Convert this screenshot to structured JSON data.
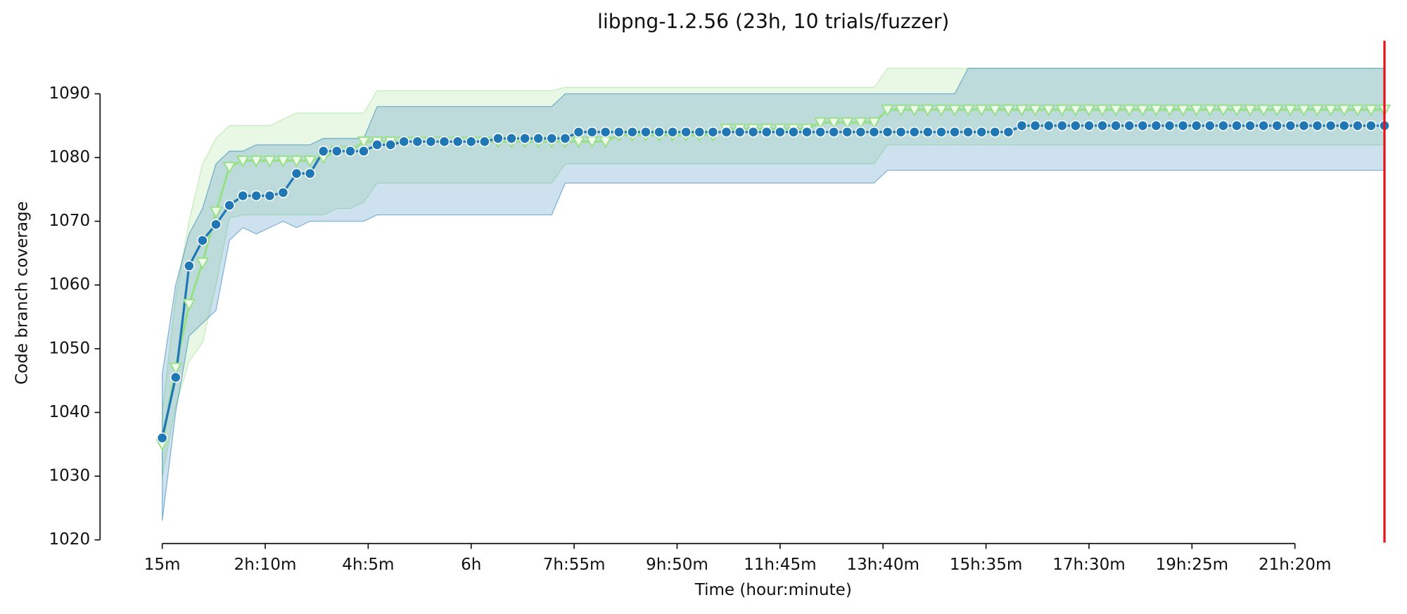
{
  "chart_data": {
    "type": "line",
    "title": "libpng-1.2.56 (23h, 10 trials/fuzzer)",
    "xlabel": "Time (hour:minute)",
    "ylabel": "Code branch coverage",
    "x": [
      15,
      30,
      45,
      60,
      75,
      90,
      105,
      120,
      135,
      150,
      165,
      180,
      195,
      210,
      225,
      240,
      255,
      270,
      285,
      300,
      315,
      330,
      345,
      360,
      375,
      390,
      405,
      420,
      435,
      450,
      465,
      480,
      495,
      510,
      525,
      540,
      555,
      570,
      585,
      600,
      615,
      630,
      645,
      660,
      675,
      690,
      705,
      720,
      735,
      750,
      765,
      780,
      795,
      810,
      825,
      840,
      855,
      870,
      885,
      900,
      915,
      930,
      945,
      960,
      975,
      990,
      1005,
      1020,
      1035,
      1050,
      1065,
      1080,
      1095,
      1110,
      1125,
      1140,
      1155,
      1170,
      1185,
      1200,
      1215,
      1230,
      1245,
      1260,
      1275,
      1290,
      1305,
      1320,
      1335,
      1350,
      1365,
      1380
    ],
    "xlim": [
      15,
      1380
    ],
    "xticks": [
      {
        "value": 15,
        "label": "15m"
      },
      {
        "value": 130,
        "label": "2h:10m"
      },
      {
        "value": 245,
        "label": "4h:5m"
      },
      {
        "value": 360,
        "label": "6h"
      },
      {
        "value": 475,
        "label": "7h:55m"
      },
      {
        "value": 590,
        "label": "9h:50m"
      },
      {
        "value": 705,
        "label": "11h:45m"
      },
      {
        "value": 820,
        "label": "13h:40m"
      },
      {
        "value": 935,
        "label": "15h:35m"
      },
      {
        "value": 1050,
        "label": "17h:30m"
      },
      {
        "value": 1165,
        "label": "19h:25m"
      },
      {
        "value": 1280,
        "label": "21h:20m"
      }
    ],
    "ylim": [
      1020,
      1098
    ],
    "yticks": [
      1020,
      1030,
      1040,
      1050,
      1060,
      1070,
      1080,
      1090
    ],
    "vline": {
      "x": 1380,
      "color": "#e8101a"
    },
    "series": [
      {
        "color": "#98df8a",
        "marker": "triangle",
        "values": [
          1035,
          1047,
          1057,
          1063.5,
          1071.5,
          1078.5,
          1079.5,
          1079.5,
          1079.5,
          1079.5,
          1079.5,
          1079.5,
          1080,
          1081,
          1081,
          1082.5,
          1082.5,
          1082.5,
          1082.5,
          1082.5,
          1082.5,
          1082.5,
          1082.5,
          1082.5,
          1082.5,
          1082.5,
          1082.5,
          1082.5,
          1082.5,
          1082.5,
          1082.5,
          1082.5,
          1082.5,
          1082.5,
          1083.5,
          1083.5,
          1083.5,
          1083.5,
          1083.5,
          1083.5,
          1083.5,
          1083.5,
          1084.5,
          1084.5,
          1084.5,
          1084.5,
          1084.5,
          1084.5,
          1084.5,
          1085.5,
          1085.5,
          1085.5,
          1085.5,
          1085.5,
          1087.5,
          1087.5,
          1087.5,
          1087.5,
          1087.5,
          1087.5,
          1087.5,
          1087.5,
          1087.5,
          1087.5,
          1087.5,
          1087.5,
          1087.5,
          1087.5,
          1087.5,
          1087.5,
          1087.5,
          1087.5,
          1087.5,
          1087.5,
          1087.5,
          1087.5,
          1087.5,
          1087.5,
          1087.5,
          1087.5,
          1087.5,
          1087.5,
          1087.5,
          1087.5,
          1087.5,
          1087.5,
          1087.5,
          1087.5,
          1087.5,
          1087.5,
          1087.5,
          1087.5
        ],
        "lower": [
          1030,
          1041,
          1048,
          1051,
          1060,
          1070.5,
          1071,
          1071,
          1071,
          1071,
          1071,
          1071,
          1071,
          1072,
          1072,
          1073,
          1076,
          1076,
          1076,
          1076,
          1076,
          1076,
          1076,
          1076,
          1076,
          1076,
          1076,
          1076,
          1076,
          1076,
          1079,
          1079,
          1079,
          1079,
          1079,
          1079,
          1079,
          1079,
          1079,
          1079,
          1079,
          1079,
          1079,
          1079,
          1079,
          1079,
          1079,
          1079,
          1079,
          1079,
          1079,
          1079,
          1079,
          1079,
          1082,
          1082,
          1082,
          1082,
          1082,
          1082,
          1082,
          1082,
          1082,
          1082,
          1082,
          1082,
          1082,
          1082,
          1082,
          1082,
          1082,
          1082,
          1082,
          1082,
          1082,
          1082,
          1082,
          1082,
          1082,
          1082,
          1082,
          1082,
          1082,
          1082,
          1082,
          1082,
          1082,
          1082,
          1082,
          1082,
          1082,
          1082
        ],
        "upper": [
          1040,
          1058,
          1070,
          1079,
          1083,
          1085,
          1085,
          1085,
          1085,
          1086,
          1087,
          1087,
          1087,
          1087,
          1087,
          1087,
          1090.5,
          1090.5,
          1090.5,
          1090.5,
          1090.5,
          1090.5,
          1090.5,
          1090.5,
          1090.5,
          1090.5,
          1090.5,
          1090.5,
          1090.5,
          1090.5,
          1091,
          1091,
          1091,
          1091,
          1091,
          1091,
          1091,
          1091,
          1091,
          1091,
          1091,
          1091,
          1091,
          1091,
          1091,
          1091,
          1091,
          1091,
          1091,
          1091,
          1091,
          1091,
          1091,
          1091,
          1094,
          1094,
          1094,
          1094,
          1094,
          1094,
          1094,
          1094,
          1094,
          1094,
          1094,
          1094,
          1094,
          1094,
          1094,
          1094,
          1094,
          1094,
          1094,
          1094,
          1094,
          1094,
          1094,
          1094,
          1094,
          1094,
          1094,
          1094,
          1094,
          1094,
          1094,
          1094,
          1094,
          1094,
          1094,
          1094,
          1094,
          1094
        ]
      },
      {
        "color": "#1f77b4",
        "marker": "circle",
        "values": [
          1036,
          1045.5,
          1063,
          1067,
          1069.5,
          1072.5,
          1074,
          1074,
          1074,
          1074.5,
          1077.5,
          1077.5,
          1081,
          1081,
          1081,
          1081,
          1082,
          1082,
          1082.5,
          1082.5,
          1082.5,
          1082.5,
          1082.5,
          1082.5,
          1082.5,
          1083,
          1083,
          1083,
          1083,
          1083,
          1083,
          1084,
          1084,
          1084,
          1084,
          1084,
          1084,
          1084,
          1084,
          1084,
          1084,
          1084,
          1084,
          1084,
          1084,
          1084,
          1084,
          1084,
          1084,
          1084,
          1084,
          1084,
          1084,
          1084,
          1084,
          1084,
          1084,
          1084,
          1084,
          1084,
          1084,
          1084,
          1084,
          1084,
          1085,
          1085,
          1085,
          1085,
          1085,
          1085,
          1085,
          1085,
          1085,
          1085,
          1085,
          1085,
          1085,
          1085,
          1085,
          1085,
          1085,
          1085,
          1085,
          1085,
          1085,
          1085,
          1085,
          1085,
          1085,
          1085,
          1085,
          1085
        ],
        "lower": [
          1023,
          1040,
          1052,
          1054,
          1056,
          1067,
          1069,
          1068,
          1069,
          1070,
          1069,
          1070,
          1070,
          1070,
          1070,
          1070,
          1071,
          1071,
          1071,
          1071,
          1071,
          1071,
          1071,
          1071,
          1071,
          1071,
          1071,
          1071,
          1071,
          1071,
          1076,
          1076,
          1076,
          1076,
          1076,
          1076,
          1076,
          1076,
          1076,
          1076,
          1076,
          1076,
          1076,
          1076,
          1076,
          1076,
          1076,
          1076,
          1076,
          1076,
          1076,
          1076,
          1076,
          1076,
          1078,
          1078,
          1078,
          1078,
          1078,
          1078,
          1078,
          1078,
          1078,
          1078,
          1078,
          1078,
          1078,
          1078,
          1078,
          1078,
          1078,
          1078,
          1078,
          1078,
          1078,
          1078,
          1078,
          1078,
          1078,
          1078,
          1078,
          1078,
          1078,
          1078,
          1078,
          1078,
          1078,
          1078,
          1078,
          1078,
          1078,
          1078
        ],
        "upper": [
          1046,
          1060,
          1068,
          1072,
          1079,
          1081,
          1081,
          1082,
          1082,
          1082,
          1082,
          1082,
          1083,
          1083,
          1083,
          1083,
          1088,
          1088,
          1088,
          1088,
          1088,
          1088,
          1088,
          1088,
          1088,
          1088,
          1088,
          1088,
          1088,
          1088,
          1090,
          1090,
          1090,
          1090,
          1090,
          1090,
          1090,
          1090,
          1090,
          1090,
          1090,
          1090,
          1090,
          1090,
          1090,
          1090,
          1090,
          1090,
          1090,
          1090,
          1090,
          1090,
          1090,
          1090,
          1090,
          1090,
          1090,
          1090,
          1090,
          1090,
          1094,
          1094,
          1094,
          1094,
          1094,
          1094,
          1094,
          1094,
          1094,
          1094,
          1094,
          1094,
          1094,
          1094,
          1094,
          1094,
          1094,
          1094,
          1094,
          1094,
          1094,
          1094,
          1094,
          1094,
          1094,
          1094,
          1094,
          1094,
          1094,
          1094,
          1094,
          1094
        ]
      }
    ]
  }
}
